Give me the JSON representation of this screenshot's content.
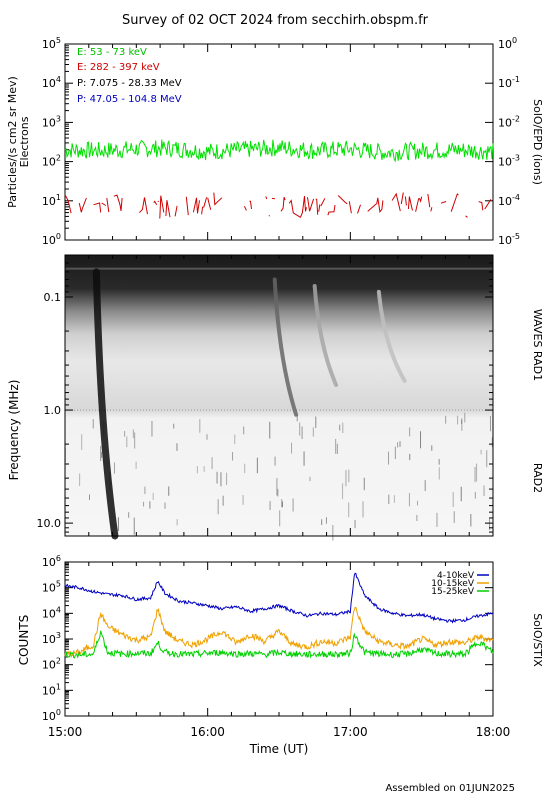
{
  "title": "Survey of 02 OCT 2024 from secchirh.obspm.fr",
  "footer": "Assembled on 01JUN2025",
  "x_axis": {
    "label": "Time (UT)",
    "ticks": [
      "15:00",
      "16:00",
      "17:00",
      "18:00"
    ],
    "range": [
      "15:00",
      "18:00"
    ]
  },
  "chart_data": [
    {
      "type": "line",
      "panel": "epd",
      "title": "",
      "ylabel": "Particles/(s cm2 sr Mev)",
      "ylabel2": "Electrons",
      "right_label": "SolO/EPD (ions)",
      "yscale": "log",
      "ylim": [
        1,
        100000
      ],
      "y_ticks_left": [
        "10^0",
        "10^1",
        "10^2",
        "10^3",
        "10^4",
        "10^5"
      ],
      "y2_scale": "log",
      "y2_lim": [
        1e-05,
        1
      ],
      "y_ticks_right": [
        "10^-5",
        "10^-4",
        "10^-3",
        "10^-2",
        "10^-1",
        "10^0"
      ],
      "x_unit": "hours UT",
      "legend": [
        "E: 53 - 73 keV",
        "E: 282 - 397 keV",
        "P: 7.075 - 28.33 MeV",
        "P: 47.05 - 104.8 MeV"
      ],
      "legend_placement": "top-left",
      "series": [
        {
          "name": "E: 53 - 73 keV",
          "color": "#00e000",
          "x": [
            15.0,
            15.25,
            15.5,
            15.75,
            16.0,
            16.25,
            16.5,
            16.75,
            17.0,
            17.25,
            17.5,
            17.75,
            18.0
          ],
          "y": [
            200,
            190,
            210,
            220,
            180,
            200,
            230,
            190,
            210,
            170,
            190,
            200,
            180
          ]
        },
        {
          "name": "E: 282 - 397 keV",
          "color": "#d00000",
          "x": [
            15.0,
            15.25,
            15.5,
            15.75,
            16.0,
            16.25,
            16.5,
            16.75,
            17.0,
            17.25,
            17.5,
            17.75,
            18.0
          ],
          "y": [
            6,
            5,
            6,
            5,
            7,
            6,
            5,
            6,
            5,
            6,
            7,
            6,
            5
          ]
        },
        {
          "name": "P: 7.075 - 28.33 MeV",
          "color": "#000000",
          "x": [],
          "y": []
        },
        {
          "name": "P: 47.05 - 104.8 MeV",
          "color": "#0000c0",
          "x": [],
          "y": []
        }
      ]
    },
    {
      "type": "heatmap",
      "panel": "waves",
      "title": "",
      "ylabel": "Frequency (MHz)",
      "yscale": "log",
      "ylim": [
        13.0,
        0.0425
      ],
      "y_ticks": [
        "0.1",
        "1.0",
        "10.0"
      ],
      "right_label_top": "WAVES RAD1",
      "right_label_bottom": "RAD2",
      "colormap": "gray_inverted",
      "features": [
        {
          "kind": "type III burst",
          "start": 15.22,
          "f_start": 0.06,
          "end": 15.35,
          "f_end": 13.0,
          "intensity": 0.95
        },
        {
          "kind": "type III burst",
          "start": 16.47,
          "f_start": 0.07,
          "end": 16.62,
          "f_end": 1.1,
          "intensity": 0.6
        },
        {
          "kind": "type III burst",
          "start": 16.75,
          "f_start": 0.08,
          "end": 16.9,
          "f_end": 0.6,
          "intensity": 0.35
        },
        {
          "kind": "type III burst",
          "start": 17.2,
          "f_start": 0.09,
          "end": 17.38,
          "f_end": 0.55,
          "intensity": 0.25
        }
      ]
    },
    {
      "type": "line",
      "panel": "stix",
      "title": "",
      "ylabel": "COUNTS",
      "right_label": "SolO/STIX",
      "yscale": "log",
      "ylim": [
        1,
        1000000
      ],
      "y_ticks": [
        "10^0",
        "10^1",
        "10^2",
        "10^3",
        "10^4",
        "10^5",
        "10^6"
      ],
      "x_unit": "hours UT",
      "legend_placement": "top-right",
      "series": [
        {
          "name": "4-10keV",
          "color": "#0000c0",
          "x": [
            15.0,
            15.1,
            15.2,
            15.3,
            15.4,
            15.5,
            15.6,
            15.65,
            15.7,
            15.8,
            15.9,
            16.0,
            16.1,
            16.2,
            16.3,
            16.4,
            16.5,
            16.6,
            16.7,
            16.8,
            16.9,
            17.0,
            17.03,
            17.1,
            17.2,
            17.3,
            17.4,
            17.5,
            17.6,
            17.7,
            17.8,
            17.9,
            18.0
          ],
          "y": [
            120000,
            100000,
            70000,
            55000,
            50000,
            35000,
            40000,
            180000,
            60000,
            30000,
            25000,
            20000,
            15000,
            18000,
            12000,
            15000,
            20000,
            12000,
            8000,
            10000,
            9000,
            12000,
            400000,
            50000,
            15000,
            10000,
            8000,
            9000,
            6000,
            5000,
            5500,
            8000,
            10000
          ]
        },
        {
          "name": "10-15keV",
          "color": "#f0a000",
          "x": [
            15.0,
            15.1,
            15.2,
            15.25,
            15.3,
            15.4,
            15.5,
            15.6,
            15.65,
            15.7,
            15.8,
            15.9,
            16.0,
            16.1,
            16.2,
            16.3,
            16.4,
            16.5,
            16.6,
            16.7,
            16.8,
            16.9,
            17.0,
            17.03,
            17.1,
            17.2,
            17.3,
            17.4,
            17.5,
            17.6,
            17.7,
            17.8,
            17.9,
            18.0
          ],
          "y": [
            250,
            300,
            600,
            10000,
            3000,
            1500,
            900,
            1200,
            15000,
            2000,
            800,
            600,
            1000,
            2000,
            700,
            1500,
            800,
            2000,
            600,
            500,
            800,
            700,
            1200,
            20000,
            2000,
            800,
            600,
            500,
            1000,
            600,
            800,
            700,
            1200,
            900
          ]
        },
        {
          "name": "15-25keV",
          "color": "#00d000",
          "x": [
            15.0,
            15.1,
            15.2,
            15.25,
            15.3,
            15.4,
            15.5,
            15.6,
            15.65,
            15.7,
            15.8,
            15.9,
            16.0,
            16.1,
            16.2,
            16.3,
            16.4,
            16.5,
            16.6,
            16.7,
            16.8,
            16.9,
            17.0,
            17.03,
            17.1,
            17.2,
            17.3,
            17.4,
            17.5,
            17.6,
            17.7,
            17.8,
            17.9,
            18.0
          ],
          "y": [
            250,
            240,
            260,
            2000,
            300,
            260,
            280,
            270,
            700,
            300,
            260,
            250,
            280,
            300,
            260,
            270,
            250,
            300,
            260,
            250,
            260,
            250,
            280,
            1500,
            300,
            260,
            250,
            260,
            400,
            270,
            260,
            250,
            800,
            300
          ]
        }
      ]
    }
  ]
}
